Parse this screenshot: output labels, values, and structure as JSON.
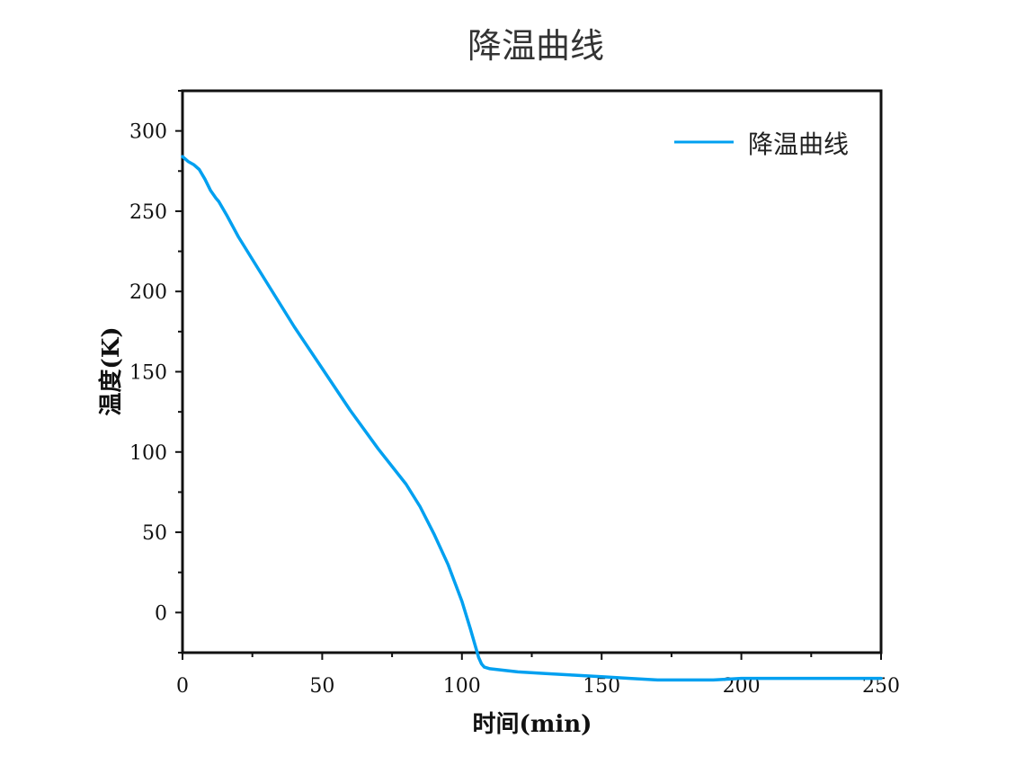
{
  "chart_data": {
    "type": "line",
    "title": "降温曲线",
    "xlabel": "时间(min)",
    "ylabel": "温度(K)",
    "xlim": [
      0,
      250
    ],
    "ylim": [
      -25,
      325
    ],
    "xticks": [
      0,
      50,
      100,
      150,
      200,
      250
    ],
    "yticks": [
      0,
      50,
      100,
      150,
      200,
      250,
      300
    ],
    "grid": false,
    "legend_position": "top-right",
    "series": [
      {
        "name": "降温曲线",
        "color": "#00A0F0",
        "x": [
          0,
          2,
          4,
          6,
          8,
          10,
          12,
          13,
          16,
          20,
          25,
          30,
          40,
          50,
          60,
          70,
          80,
          85,
          90,
          95,
          100,
          103,
          105,
          106,
          107,
          108,
          110,
          115,
          120,
          130,
          140,
          150,
          160,
          170,
          175,
          180,
          190,
          200,
          210,
          220,
          230,
          240,
          250
        ],
        "y": [
          284,
          281,
          279,
          276,
          270,
          263,
          258,
          256,
          247,
          234,
          220,
          206,
          178,
          152,
          126,
          102,
          80,
          66,
          49,
          30,
          7,
          -10,
          -22,
          -28,
          -32,
          -34,
          -35,
          -36,
          -37,
          -38,
          -39,
          -40,
          -41,
          -42,
          -42,
          -42,
          -42,
          -41,
          -41,
          -41,
          -41,
          -41,
          -41
        ]
      }
    ]
  }
}
